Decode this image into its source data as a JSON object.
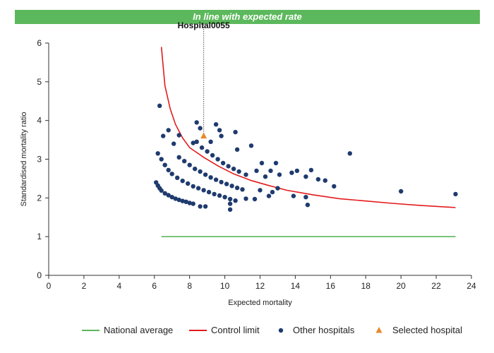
{
  "banner": {
    "text": "In line with expected rate",
    "color": "#5cb85c"
  },
  "chart_data": {
    "type": "scatter",
    "xlabel": "Expected mortality",
    "ylabel": "Standardised mortality ratio",
    "xlim": [
      0,
      24
    ],
    "ylim": [
      0,
      6
    ],
    "x_ticks": [
      0,
      2,
      4,
      6,
      8,
      10,
      12,
      14,
      16,
      18,
      20,
      22,
      24
    ],
    "y_ticks": [
      0,
      1,
      2,
      3,
      4,
      5,
      6
    ],
    "grid": false,
    "legend_position": "bottom",
    "annotation": {
      "label": "Hospital0055",
      "x": 8.8,
      "y": 3.6
    },
    "series": [
      {
        "name": "National average",
        "kind": "line",
        "color": "#5cb85c",
        "points": [
          [
            6.4,
            1.0
          ],
          [
            23.1,
            1.0
          ]
        ]
      },
      {
        "name": "Control limit",
        "kind": "line",
        "color": "#e41a1c",
        "points": [
          [
            6.4,
            5.9
          ],
          [
            6.6,
            4.9
          ],
          [
            6.9,
            4.3
          ],
          [
            7.2,
            3.9
          ],
          [
            7.6,
            3.55
          ],
          [
            8.0,
            3.3
          ],
          [
            8.8,
            3.05
          ],
          [
            9.6,
            2.83
          ],
          [
            10.5,
            2.62
          ],
          [
            11.5,
            2.45
          ],
          [
            12.5,
            2.32
          ],
          [
            13.5,
            2.2
          ],
          [
            15.0,
            2.08
          ],
          [
            16.5,
            1.98
          ],
          [
            18.0,
            1.92
          ],
          [
            19.5,
            1.86
          ],
          [
            21.0,
            1.81
          ],
          [
            23.1,
            1.75
          ]
        ]
      },
      {
        "name": "Other hospitals",
        "kind": "scatter",
        "color": "#1f3b6e",
        "points": [
          [
            6.1,
            2.4
          ],
          [
            6.2,
            2.32
          ],
          [
            6.3,
            2.25
          ],
          [
            6.4,
            2.19
          ],
          [
            6.6,
            2.12
          ],
          [
            6.8,
            2.07
          ],
          [
            7.0,
            2.02
          ],
          [
            7.2,
            1.98
          ],
          [
            7.4,
            1.95
          ],
          [
            7.6,
            1.92
          ],
          [
            7.8,
            1.9
          ],
          [
            8.0,
            1.87
          ],
          [
            8.2,
            1.85
          ],
          [
            8.6,
            1.78
          ],
          [
            8.9,
            1.78
          ],
          [
            6.2,
            3.15
          ],
          [
            6.4,
            3.0
          ],
          [
            6.6,
            2.85
          ],
          [
            6.8,
            2.72
          ],
          [
            7.0,
            2.62
          ],
          [
            7.3,
            2.52
          ],
          [
            7.6,
            2.44
          ],
          [
            7.9,
            2.37
          ],
          [
            8.2,
            2.3
          ],
          [
            8.5,
            2.25
          ],
          [
            8.8,
            2.2
          ],
          [
            9.1,
            2.15
          ],
          [
            9.4,
            2.1
          ],
          [
            9.7,
            2.06
          ],
          [
            10.0,
            2.02
          ],
          [
            10.3,
            1.97
          ],
          [
            10.6,
            1.93
          ],
          [
            7.4,
            3.05
          ],
          [
            7.7,
            2.95
          ],
          [
            8.0,
            2.85
          ],
          [
            8.3,
            2.75
          ],
          [
            8.6,
            2.68
          ],
          [
            8.9,
            2.6
          ],
          [
            9.2,
            2.53
          ],
          [
            9.5,
            2.47
          ],
          [
            9.8,
            2.41
          ],
          [
            10.1,
            2.36
          ],
          [
            10.4,
            2.31
          ],
          [
            10.7,
            2.26
          ],
          [
            11.0,
            2.22
          ],
          [
            8.4,
            3.45
          ],
          [
            8.7,
            3.3
          ],
          [
            9.0,
            3.2
          ],
          [
            9.3,
            3.1
          ],
          [
            9.6,
            3.0
          ],
          [
            9.9,
            2.9
          ],
          [
            10.2,
            2.82
          ],
          [
            10.5,
            2.75
          ],
          [
            10.8,
            2.68
          ],
          [
            11.2,
            2.6
          ],
          [
            6.3,
            4.38
          ],
          [
            6.5,
            3.6
          ],
          [
            6.8,
            3.75
          ],
          [
            7.1,
            3.4
          ],
          [
            7.4,
            3.62
          ],
          [
            8.2,
            3.42
          ],
          [
            8.4,
            3.95
          ],
          [
            8.6,
            3.8
          ],
          [
            9.2,
            3.45
          ],
          [
            9.5,
            3.9
          ],
          [
            9.7,
            3.75
          ],
          [
            9.8,
            3.6
          ],
          [
            10.6,
            3.7
          ],
          [
            10.7,
            3.25
          ],
          [
            11.5,
            3.35
          ],
          [
            12.1,
            2.9
          ],
          [
            12.9,
            2.9
          ],
          [
            13.1,
            2.6
          ],
          [
            13.8,
            2.65
          ],
          [
            14.1,
            2.7
          ],
          [
            14.6,
            2.55
          ],
          [
            14.9,
            2.72
          ],
          [
            15.3,
            2.48
          ],
          [
            15.7,
            2.45
          ],
          [
            16.2,
            2.3
          ],
          [
            17.1,
            3.15
          ],
          [
            20.0,
            2.17
          ],
          [
            23.1,
            2.1
          ],
          [
            11.8,
            2.7
          ],
          [
            12.3,
            2.55
          ],
          [
            12.6,
            2.7
          ],
          [
            12.0,
            2.2
          ],
          [
            12.5,
            2.05
          ],
          [
            12.7,
            2.15
          ],
          [
            13.0,
            2.25
          ],
          [
            13.9,
            2.05
          ],
          [
            14.6,
            2.02
          ],
          [
            14.7,
            1.82
          ],
          [
            10.3,
            1.85
          ],
          [
            10.3,
            1.7
          ],
          [
            11.2,
            1.98
          ],
          [
            11.7,
            1.97
          ]
        ]
      },
      {
        "name": "Selected hospital",
        "kind": "marker",
        "color": "#e8892b",
        "points": [
          [
            8.8,
            3.6
          ]
        ]
      }
    ]
  }
}
